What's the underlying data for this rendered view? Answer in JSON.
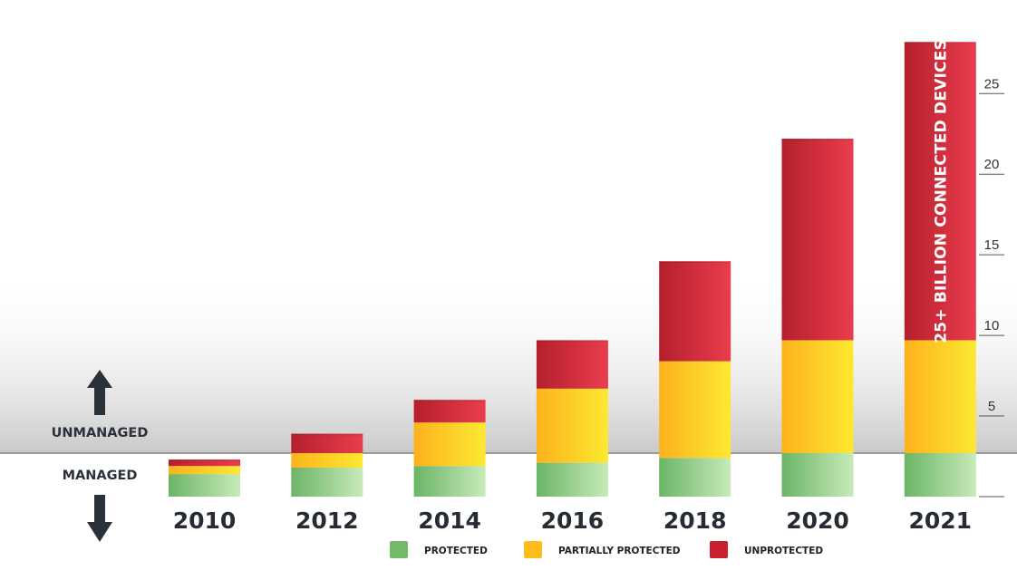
{
  "chart_data": {
    "type": "bar",
    "stacked": true,
    "categories": [
      "2010",
      "2012",
      "2014",
      "2016",
      "2018",
      "2020",
      "2021"
    ],
    "series": [
      {
        "name": "PROTECTED",
        "color": "#74b86a",
        "values": [
          1.4,
          1.8,
          1.9,
          2.1,
          2.4,
          2.7,
          2.7
        ]
      },
      {
        "name": "PARTIALLY PROTECTED",
        "color": "#fdbb1c",
        "values": [
          0.5,
          0.9,
          2.7,
          4.6,
          6.0,
          7.0,
          7.0
        ]
      },
      {
        "name": "UNPROTECTED",
        "color": "#c8202f",
        "values": [
          0.4,
          1.2,
          1.4,
          3.0,
          6.2,
          12.5,
          18.5
        ]
      }
    ],
    "ylim": [
      0,
      28.5
    ],
    "yticks": [
      5,
      10,
      15,
      20,
      25
    ],
    "axis_position": "right",
    "managed_threshold": 2.7,
    "annotations": [
      {
        "category": "2021",
        "text": "25+ BILLION CONNECTED DEVICES"
      }
    ],
    "zone_labels": {
      "upper": "UNMANAGED",
      "lower": "MANAGED"
    },
    "legend_placement": "bottom-center",
    "title": "",
    "xlabel": "",
    "ylabel": ""
  }
}
